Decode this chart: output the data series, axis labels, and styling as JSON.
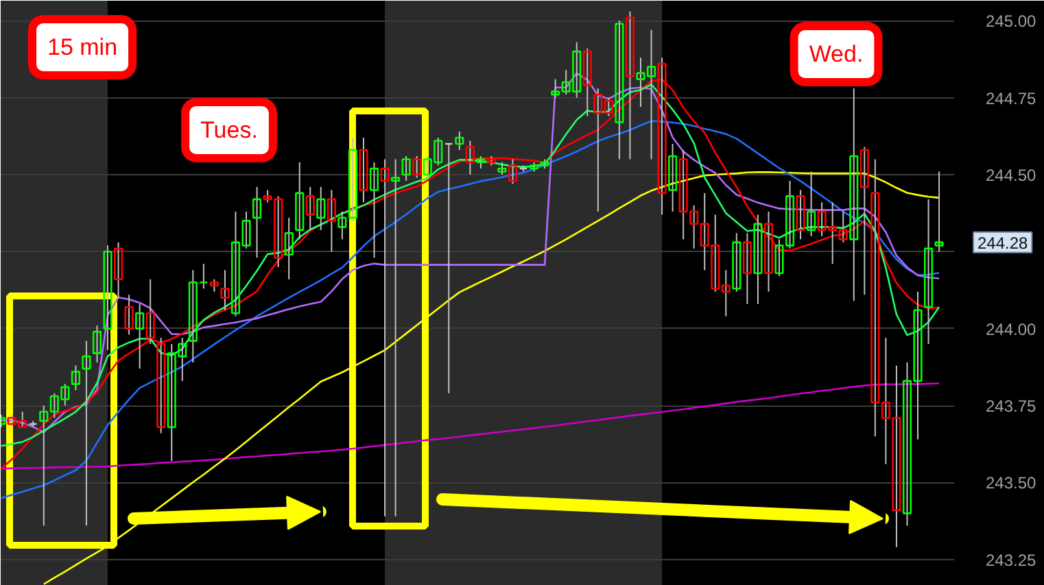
{
  "chart_data": {
    "type": "candlestick",
    "title": "15 min",
    "annotations": [
      "Tues.",
      "Wed.",
      "244.28"
    ],
    "categories": [
      null,
      null,
      null,
      null,
      null,
      null,
      null,
      null,
      null,
      null,
      null,
      null,
      null,
      null,
      null,
      null,
      null,
      null,
      null,
      null,
      null,
      null,
      null,
      null,
      null,
      null,
      null,
      null,
      null,
      null,
      null,
      null,
      null,
      null,
      null,
      null,
      null,
      null,
      null,
      null,
      null,
      null,
      null,
      null,
      null,
      null,
      null,
      null,
      null,
      null,
      null,
      null,
      null,
      null,
      null,
      null,
      null,
      null,
      null,
      null,
      null,
      null,
      null,
      null,
      null,
      null,
      null,
      null,
      null,
      null,
      null,
      null,
      null,
      null,
      null,
      null,
      null,
      null,
      null,
      null,
      null,
      null,
      null,
      null,
      null,
      null,
      null,
      null,
      null
    ],
    "ohlc": [
      [
        243.69,
        243.72,
        243.68,
        243.71
      ],
      [
        243.71,
        243.72,
        243.68,
        243.69
      ],
      [
        243.7,
        243.73,
        243.68,
        243.68
      ],
      [
        243.69,
        243.7,
        243.68,
        243.69
      ],
      [
        243.7,
        243.75,
        243.36,
        243.73
      ],
      [
        243.73,
        243.79,
        243.71,
        243.78
      ],
      [
        243.77,
        243.82,
        243.75,
        243.81
      ],
      [
        243.82,
        243.88,
        243.8,
        243.86
      ],
      [
        243.87,
        243.96,
        243.36,
        243.91
      ],
      [
        243.92,
        244.01,
        243.89,
        243.99
      ],
      [
        244.0,
        244.27,
        243.93,
        244.25
      ],
      [
        244.26,
        244.28,
        244.1,
        244.16
      ],
      [
        244.07,
        244.11,
        243.98,
        244.0
      ],
      [
        244.0,
        244.08,
        243.87,
        244.05
      ],
      [
        244.05,
        244.16,
        243.95,
        243.97
      ],
      [
        243.95,
        243.97,
        243.66,
        243.68
      ],
      [
        243.68,
        243.95,
        243.57,
        243.92
      ],
      [
        243.91,
        243.97,
        243.83,
        243.95
      ],
      [
        243.96,
        244.19,
        243.89,
        244.15
      ],
      [
        244.15,
        244.21,
        244.13,
        244.15
      ],
      [
        244.15,
        244.16,
        244.12,
        244.14
      ],
      [
        244.13,
        244.19,
        244.06,
        244.1
      ],
      [
        244.05,
        244.38,
        244.04,
        244.28
      ],
      [
        244.27,
        244.38,
        244.26,
        244.35
      ],
      [
        244.36,
        244.46,
        244.23,
        244.42
      ],
      [
        244.43,
        244.45,
        244.41,
        244.42
      ],
      [
        244.42,
        244.43,
        244.2,
        244.23
      ],
      [
        244.24,
        244.36,
        244.16,
        244.31
      ],
      [
        244.32,
        244.54,
        244.29,
        244.44
      ],
      [
        244.43,
        244.46,
        244.32,
        244.37
      ],
      [
        244.36,
        244.46,
        244.32,
        244.42
      ],
      [
        244.42,
        244.45,
        244.25,
        244.35
      ],
      [
        244.33,
        244.38,
        244.29,
        244.36
      ],
      [
        244.36,
        244.62,
        244.35,
        244.58
      ],
      [
        244.58,
        244.62,
        244.41,
        244.45
      ],
      [
        244.45,
        244.54,
        244.23,
        244.52
      ],
      [
        244.52,
        244.55,
        243.39,
        244.48
      ],
      [
        244.48,
        244.55,
        243.39,
        244.49
      ],
      [
        244.5,
        244.56,
        244.48,
        244.55
      ],
      [
        244.55,
        244.56,
        244.49,
        244.5
      ],
      [
        244.5,
        244.56,
        244.49,
        244.55
      ],
      [
        244.54,
        244.62,
        244.53,
        244.61
      ],
      [
        244.6,
        244.6,
        243.79,
        244.6
      ],
      [
        244.6,
        244.64,
        244.58,
        244.62
      ],
      [
        244.59,
        244.61,
        244.5,
        244.54
      ],
      [
        244.54,
        244.56,
        244.52,
        244.55
      ],
      [
        244.55,
        244.56,
        244.53,
        244.54
      ],
      [
        244.51,
        244.54,
        244.5,
        244.52
      ],
      [
        244.53,
        244.55,
        244.47,
        244.48
      ],
      [
        244.52,
        244.53,
        244.51,
        244.52
      ],
      [
        244.52,
        244.54,
        244.51,
        244.53
      ],
      [
        244.53,
        244.55,
        244.52,
        244.54
      ],
      [
        244.76,
        244.81,
        244.75,
        244.77
      ],
      [
        244.77,
        244.84,
        244.76,
        244.8
      ],
      [
        244.77,
        244.93,
        244.75,
        244.9
      ],
      [
        244.9,
        244.91,
        244.69,
        244.79
      ],
      [
        244.76,
        244.78,
        244.38,
        244.7
      ],
      [
        244.74,
        244.75,
        244.69,
        244.7
      ],
      [
        244.67,
        245.0,
        244.55,
        244.99
      ],
      [
        245.01,
        245.03,
        244.55,
        244.82
      ],
      [
        244.81,
        244.88,
        244.72,
        244.83
      ],
      [
        244.82,
        244.97,
        244.55,
        244.85
      ],
      [
        244.86,
        244.88,
        244.37,
        244.44
      ],
      [
        244.45,
        244.6,
        244.38,
        244.56
      ],
      [
        244.55,
        244.58,
        244.29,
        244.38
      ],
      [
        244.38,
        244.4,
        244.26,
        244.34
      ],
      [
        244.34,
        244.44,
        244.19,
        244.27
      ],
      [
        244.27,
        244.37,
        244.12,
        244.13
      ],
      [
        244.14,
        244.19,
        244.04,
        244.12
      ],
      [
        244.13,
        244.31,
        244.12,
        244.28
      ],
      [
        244.28,
        244.31,
        244.08,
        244.18
      ],
      [
        244.18,
        244.37,
        244.08,
        244.34
      ],
      [
        244.34,
        244.38,
        244.12,
        244.18
      ],
      [
        244.18,
        244.29,
        244.17,
        244.27
      ],
      [
        244.27,
        244.48,
        244.26,
        244.43
      ],
      [
        244.43,
        244.45,
        244.29,
        244.32
      ],
      [
        244.32,
        244.51,
        244.3,
        244.38
      ],
      [
        244.38,
        244.41,
        244.3,
        244.32
      ],
      [
        244.33,
        244.41,
        244.21,
        244.32
      ],
      [
        244.32,
        244.38,
        244.28,
        244.29
      ],
      [
        244.29,
        244.78,
        244.09,
        244.56
      ],
      [
        244.58,
        244.59,
        244.11,
        244.46
      ],
      [
        244.44,
        244.55,
        243.65,
        243.76
      ],
      [
        243.76,
        243.97,
        243.56,
        243.71
      ],
      [
        243.71,
        243.88,
        243.29,
        243.41
      ],
      [
        243.4,
        243.89,
        243.36,
        243.83
      ],
      [
        243.83,
        244.12,
        243.64,
        244.06
      ],
      [
        244.07,
        244.42,
        243.95,
        244.26
      ],
      [
        244.27,
        244.51,
        244.25,
        244.28
      ]
    ],
    "colors": [
      "#00ff00",
      "#ff0000",
      "#ff0000",
      "#c8c8c8",
      "#00ff00",
      "#00ff00",
      "#00ff00",
      "#00ff00",
      "#00ff00",
      "#00ff00",
      "#00ff00",
      "#ff0000",
      "#ff0000",
      "#00ff00",
      "#ff0000",
      "#ff0000",
      "#00ff00",
      "#00ff00",
      "#00ff00",
      "#00ff00",
      "#ff0000",
      "#ff0000",
      "#00ff00",
      "#00ff00",
      "#00ff00",
      "#ff0000",
      "#ff0000",
      "#00ff00",
      "#00ff00",
      "#ff0000",
      "#00ff00",
      "#ff0000",
      "#00ff00",
      "#00ff00",
      "#ff0000",
      "#00ff00",
      "#ff0000",
      "#00ff00",
      "#00ff00",
      "#ff0000",
      "#00ff00",
      "#00ff00",
      "#c8c8c8",
      "#00ff00",
      "#ff0000",
      "#00ff00",
      "#ff0000",
      "#00ff00",
      "#ff0000",
      "#c8c8c8",
      "#00ff00",
      "#00ff00",
      "#00ff00",
      "#00ff00",
      "#00ff00",
      "#ff0000",
      "#ff0000",
      "#ff0000",
      "#00ff00",
      "#ff0000",
      "#00ff00",
      "#00ff00",
      "#ff0000",
      "#00ff00",
      "#ff0000",
      "#ff0000",
      "#ff0000",
      "#ff0000",
      "#ff0000",
      "#00ff00",
      "#ff0000",
      "#00ff00",
      "#ff0000",
      "#00ff00",
      "#00ff00",
      "#ff0000",
      "#00ff00",
      "#ff0000",
      "#ff0000",
      "#ff0000",
      "#00ff00",
      "#ff0000",
      "#ff0000",
      "#ff0000",
      "#ff0000",
      "#00ff00",
      "#00ff00",
      "#00ff00",
      "#00ff00"
    ],
    "series": [
      {
        "type": "line",
        "color": "#cc00cc",
        "values": [
          243.545,
          243.546,
          243.547,
          243.547,
          243.548,
          243.549,
          243.55,
          243.55,
          243.551,
          243.551,
          243.552,
          243.555,
          243.557,
          243.559,
          243.561,
          243.564,
          243.566,
          243.568,
          243.57,
          243.572,
          243.574,
          243.577,
          243.58,
          243.583,
          243.585,
          243.588,
          243.59,
          243.593,
          243.596,
          243.599,
          243.601,
          243.604,
          243.607,
          243.61,
          243.614,
          243.618,
          243.622,
          243.626,
          243.63,
          243.634,
          243.638,
          243.641,
          243.645,
          243.649,
          243.653,
          243.657,
          243.661,
          243.665,
          243.669,
          243.673,
          243.677,
          243.681,
          243.685,
          243.69,
          243.694,
          243.699,
          243.703,
          243.708,
          243.712,
          243.717,
          243.721,
          243.725,
          243.729,
          243.734,
          243.738,
          243.743,
          243.747,
          243.752,
          243.757,
          243.762,
          243.766,
          243.77,
          243.774,
          243.779,
          243.784,
          243.789,
          243.793,
          243.798,
          243.802,
          243.807,
          243.811,
          243.815,
          243.818,
          243.819,
          243.819,
          243.82,
          243.82,
          243.821,
          243.822
        ]
      },
      {
        "type": "line",
        "color": "#ffff00",
        "values": [
          null,
          null,
          null,
          null,
          243.17,
          243.191,
          243.211,
          243.232,
          243.253,
          243.273,
          243.294,
          243.32,
          243.345,
          243.371,
          243.397,
          243.423,
          243.449,
          243.475,
          243.501,
          243.526,
          243.552,
          243.578,
          243.605,
          243.633,
          243.661,
          243.689,
          243.717,
          243.745,
          243.772,
          243.8,
          243.828,
          243.843,
          243.858,
          243.876,
          243.894,
          243.912,
          243.93,
          243.957,
          243.984,
          244.011,
          244.038,
          244.065,
          244.092,
          244.118,
          244.135,
          244.152,
          244.168,
          244.185,
          244.202,
          244.218,
          244.235,
          244.252,
          244.271,
          244.29,
          244.31,
          244.33,
          244.35,
          244.37,
          244.391,
          244.411,
          244.432,
          244.448,
          244.46,
          244.471,
          244.48,
          244.489,
          244.497,
          244.5,
          244.502,
          244.504,
          244.507,
          244.508,
          244.508,
          244.507,
          244.506,
          244.505,
          244.504,
          244.504,
          244.504,
          244.504,
          244.504,
          244.504,
          244.491,
          244.475,
          244.457,
          244.441,
          244.434,
          244.428,
          244.425
        ]
      },
      {
        "type": "line",
        "color": "#2070ff",
        "values": [
          243.449,
          243.46,
          243.47,
          243.481,
          243.491,
          243.507,
          243.524,
          243.54,
          243.571,
          243.629,
          243.687,
          243.729,
          243.77,
          243.807,
          243.825,
          243.842,
          243.859,
          243.877,
          243.901,
          243.925,
          243.949,
          243.972,
          243.995,
          244.017,
          244.04,
          244.06,
          244.08,
          244.1,
          244.119,
          244.138,
          244.157,
          244.178,
          244.198,
          244.232,
          244.268,
          244.3,
          244.323,
          244.346,
          244.371,
          244.397,
          244.423,
          244.444,
          244.453,
          244.461,
          244.47,
          244.479,
          244.485,
          244.492,
          244.5,
          244.506,
          244.518,
          244.532,
          244.546,
          244.56,
          244.575,
          244.592,
          244.609,
          244.622,
          244.633,
          244.645,
          244.66,
          244.674,
          244.673,
          244.669,
          244.665,
          244.658,
          244.649,
          244.641,
          244.632,
          244.617,
          244.593,
          244.569,
          244.545,
          244.521,
          244.5,
          244.479,
          244.455,
          244.431,
          244.406,
          244.38,
          244.359,
          244.344,
          244.314,
          244.268,
          244.225,
          244.194,
          244.174,
          244.175,
          244.181
        ]
      },
      {
        "type": "line",
        "color": "#b36bff",
        "values": [
          243.703,
          243.701,
          243.694,
          243.681,
          243.663,
          243.697,
          243.73,
          243.746,
          243.754,
          243.803,
          244.043,
          244.101,
          244.095,
          244.084,
          244.066,
          244.024,
          243.982,
          243.982,
          243.99,
          244.004,
          244.009,
          244.015,
          244.02,
          244.027,
          244.033,
          244.044,
          244.053,
          244.063,
          244.072,
          244.08,
          244.087,
          244.121,
          244.161,
          244.19,
          244.204,
          244.211,
          244.207,
          244.207,
          244.207,
          244.207,
          244.207,
          244.207,
          244.207,
          244.207,
          244.207,
          244.207,
          244.207,
          244.207,
          244.207,
          244.207,
          244.207,
          244.207,
          244.783,
          244.783,
          244.829,
          244.808,
          244.758,
          244.746,
          244.766,
          244.78,
          244.783,
          244.778,
          244.709,
          244.621,
          244.575,
          244.548,
          244.526,
          244.506,
          244.466,
          244.435,
          244.422,
          244.409,
          244.399,
          244.39,
          244.388,
          244.387,
          244.386,
          244.385,
          244.385,
          244.385,
          244.39,
          244.39,
          244.363,
          244.313,
          244.237,
          244.199,
          244.173,
          244.166,
          244.163
        ]
      },
      {
        "type": "line",
        "color": "#ff0000",
        "values": [
          243.545,
          243.575,
          243.61,
          243.65,
          243.69,
          243.72,
          243.733,
          243.742,
          243.76,
          243.793,
          243.848,
          243.896,
          243.919,
          243.94,
          243.964,
          243.955,
          243.966,
          243.984,
          244.006,
          244.026,
          244.046,
          244.061,
          244.075,
          244.099,
          244.121,
          244.175,
          244.222,
          244.255,
          244.279,
          244.318,
          244.338,
          244.356,
          244.373,
          244.391,
          244.401,
          244.408,
          244.426,
          244.44,
          244.451,
          244.461,
          244.481,
          244.503,
          244.523,
          244.542,
          244.549,
          244.553,
          244.553,
          244.553,
          244.551,
          244.548,
          244.546,
          244.538,
          244.571,
          244.593,
          244.611,
          244.629,
          244.646,
          244.677,
          244.713,
          244.742,
          244.775,
          244.804,
          244.809,
          244.775,
          244.718,
          244.673,
          244.636,
          244.571,
          244.515,
          244.46,
          244.397,
          244.346,
          244.299,
          244.256,
          244.253,
          244.264,
          244.275,
          244.288,
          244.301,
          244.307,
          244.324,
          244.348,
          244.317,
          244.219,
          244.148,
          244.106,
          244.077,
          244.066,
          244.068
        ]
      },
      {
        "type": "line",
        "color": "#22ff66",
        "values": [
          243.619,
          243.625,
          243.632,
          243.648,
          243.668,
          243.688,
          243.708,
          243.73,
          243.763,
          243.823,
          243.91,
          243.939,
          243.955,
          243.967,
          243.967,
          243.921,
          243.913,
          243.934,
          243.988,
          244.028,
          244.052,
          244.07,
          244.093,
          244.139,
          244.188,
          244.242,
          244.246,
          244.257,
          244.297,
          244.322,
          244.338,
          244.355,
          244.375,
          244.385,
          244.4,
          244.419,
          244.435,
          244.451,
          244.464,
          244.477,
          244.488,
          244.517,
          244.534,
          244.548,
          244.548,
          244.543,
          244.54,
          244.533,
          244.528,
          244.525,
          244.528,
          244.534,
          244.58,
          244.631,
          244.678,
          244.708,
          244.702,
          244.706,
          244.742,
          244.768,
          244.775,
          244.793,
          244.753,
          244.711,
          244.664,
          244.602,
          244.491,
          244.433,
          244.375,
          244.346,
          244.317,
          244.321,
          244.308,
          244.295,
          244.313,
          244.325,
          244.33,
          244.33,
          244.33,
          244.326,
          244.344,
          244.373,
          244.317,
          244.197,
          244.046,
          243.979,
          243.992,
          244.021,
          244.07
        ]
      }
    ],
    "ylim": [
      243.165,
      245.065
    ],
    "yticks": [
      243.25,
      {
        "value": 243.5,
        "label": "243.50"
      },
      243.75,
      {
        "value": 244,
        "label": "244.00"
      },
      {
        "value": 244.25,
        "label": null
      },
      {
        "value": 244.5,
        "label": "244.50"
      },
      244.75,
      {
        "value": 245,
        "label": "245.00"
      }
    ],
    "grid": "y",
    "tick_labels": "y"
  }
}
